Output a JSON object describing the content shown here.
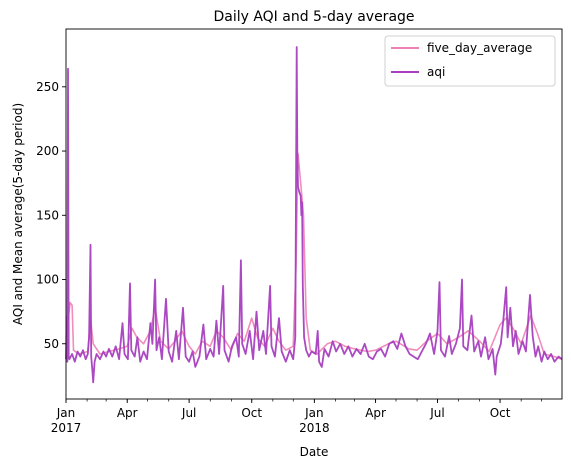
{
  "chart_data": {
    "type": "line",
    "title": "Daily AQI and 5-day average",
    "xlabel": "Date",
    "ylabel": "AQI and Mean average(5-day period)",
    "legend_position": "top-right",
    "grid": false,
    "xlim": [
      "2017-01-01",
      "2018-12-31"
    ],
    "ylim": [
      7,
      295
    ],
    "x_ticks": [
      {
        "date": "2017-01-01",
        "label": "Jan",
        "label2": "2017"
      },
      {
        "date": "2017-04-01",
        "label": "Apr",
        "label2": ""
      },
      {
        "date": "2017-07-01",
        "label": "Jul",
        "label2": ""
      },
      {
        "date": "2017-10-01",
        "label": "Oct",
        "label2": ""
      },
      {
        "date": "2018-01-01",
        "label": "Jan",
        "label2": "2018"
      },
      {
        "date": "2018-04-01",
        "label": "Apr",
        "label2": ""
      },
      {
        "date": "2018-07-01",
        "label": "Jul",
        "label2": ""
      },
      {
        "date": "2018-10-01",
        "label": "Oct",
        "label2": ""
      }
    ],
    "y_ticks": [
      50,
      100,
      150,
      200,
      250
    ],
    "series": [
      {
        "name": "five_day_average",
        "color": "#f07fb4",
        "points": [
          [
            "2017-01-01",
            55
          ],
          [
            "2017-01-04",
            68
          ],
          [
            "2017-01-07",
            82
          ],
          [
            "2017-01-10",
            80
          ],
          [
            "2017-01-12",
            45
          ],
          [
            "2017-01-20",
            42
          ],
          [
            "2017-02-02",
            44
          ],
          [
            "2017-02-06",
            70
          ],
          [
            "2017-02-10",
            50
          ],
          [
            "2017-02-20",
            42
          ],
          [
            "2017-03-05",
            44
          ],
          [
            "2017-03-20",
            46
          ],
          [
            "2017-04-01",
            48
          ],
          [
            "2017-04-08",
            62
          ],
          [
            "2017-04-15",
            55
          ],
          [
            "2017-04-25",
            50
          ],
          [
            "2017-05-05",
            60
          ],
          [
            "2017-05-12",
            78
          ],
          [
            "2017-05-20",
            52
          ],
          [
            "2017-06-01",
            46
          ],
          [
            "2017-06-10",
            52
          ],
          [
            "2017-06-20",
            60
          ],
          [
            "2017-07-01",
            48
          ],
          [
            "2017-07-10",
            42
          ],
          [
            "2017-07-20",
            52
          ],
          [
            "2017-08-01",
            48
          ],
          [
            "2017-08-10",
            60
          ],
          [
            "2017-08-20",
            55
          ],
          [
            "2017-09-01",
            45
          ],
          [
            "2017-09-10",
            58
          ],
          [
            "2017-09-20",
            52
          ],
          [
            "2017-10-01",
            70
          ],
          [
            "2017-10-10",
            54
          ],
          [
            "2017-10-20",
            48
          ],
          [
            "2017-11-01",
            62
          ],
          [
            "2017-11-10",
            52
          ],
          [
            "2017-11-20",
            45
          ],
          [
            "2017-12-01",
            48
          ],
          [
            "2017-12-05",
            110
          ],
          [
            "2017-12-08",
            198
          ],
          [
            "2017-12-12",
            175
          ],
          [
            "2017-12-16",
            150
          ],
          [
            "2017-12-20",
            70
          ],
          [
            "2017-12-26",
            45
          ],
          [
            "2018-01-05",
            42
          ],
          [
            "2018-01-20",
            50
          ],
          [
            "2018-02-01",
            52
          ],
          [
            "2018-02-15",
            48
          ],
          [
            "2018-03-01",
            46
          ],
          [
            "2018-03-20",
            44
          ],
          [
            "2018-04-01",
            45
          ],
          [
            "2018-04-20",
            50
          ],
          [
            "2018-05-01",
            52
          ],
          [
            "2018-05-20",
            46
          ],
          [
            "2018-06-01",
            45
          ],
          [
            "2018-06-15",
            52
          ],
          [
            "2018-07-01",
            58
          ],
          [
            "2018-07-15",
            50
          ],
          [
            "2018-08-01",
            55
          ],
          [
            "2018-08-15",
            60
          ],
          [
            "2018-09-01",
            52
          ],
          [
            "2018-09-15",
            44
          ],
          [
            "2018-10-01",
            65
          ],
          [
            "2018-10-10",
            70
          ],
          [
            "2018-10-20",
            62
          ],
          [
            "2018-11-01",
            50
          ],
          [
            "2018-11-15",
            72
          ],
          [
            "2018-11-25",
            58
          ],
          [
            "2018-12-05",
            42
          ],
          [
            "2018-12-20",
            40
          ],
          [
            "2018-12-31",
            38
          ]
        ]
      },
      {
        "name": "aqi",
        "color": "#a73fc0",
        "points": [
          [
            "2017-01-01",
            38
          ],
          [
            "2017-01-02",
            71
          ],
          [
            "2017-01-03",
            36
          ],
          [
            "2017-01-04",
            264
          ],
          [
            "2017-01-05",
            40
          ],
          [
            "2017-01-06",
            38
          ],
          [
            "2017-01-10",
            42
          ],
          [
            "2017-01-14",
            36
          ],
          [
            "2017-01-18",
            44
          ],
          [
            "2017-01-22",
            40
          ],
          [
            "2017-01-26",
            45
          ],
          [
            "2017-01-30",
            38
          ],
          [
            "2017-02-02",
            42
          ],
          [
            "2017-02-04",
            55
          ],
          [
            "2017-02-06",
            127
          ],
          [
            "2017-02-07",
            40
          ],
          [
            "2017-02-09",
            28
          ],
          [
            "2017-02-10",
            20
          ],
          [
            "2017-02-12",
            36
          ],
          [
            "2017-02-15",
            42
          ],
          [
            "2017-02-20",
            38
          ],
          [
            "2017-02-25",
            44
          ],
          [
            "2017-03-01",
            40
          ],
          [
            "2017-03-05",
            46
          ],
          [
            "2017-03-10",
            40
          ],
          [
            "2017-03-15",
            48
          ],
          [
            "2017-03-20",
            38
          ],
          [
            "2017-03-25",
            66
          ],
          [
            "2017-03-28",
            42
          ],
          [
            "2017-04-02",
            38
          ],
          [
            "2017-04-05",
            97
          ],
          [
            "2017-04-07",
            45
          ],
          [
            "2017-04-12",
            40
          ],
          [
            "2017-04-16",
            55
          ],
          [
            "2017-04-20",
            36
          ],
          [
            "2017-04-25",
            44
          ],
          [
            "2017-04-30",
            38
          ],
          [
            "2017-05-05",
            66
          ],
          [
            "2017-05-08",
            50
          ],
          [
            "2017-05-12",
            100
          ],
          [
            "2017-05-14",
            45
          ],
          [
            "2017-05-18",
            55
          ],
          [
            "2017-05-22",
            38
          ],
          [
            "2017-05-28",
            85
          ],
          [
            "2017-06-01",
            44
          ],
          [
            "2017-06-06",
            36
          ],
          [
            "2017-06-12",
            60
          ],
          [
            "2017-06-16",
            38
          ],
          [
            "2017-06-22",
            78
          ],
          [
            "2017-06-26",
            40
          ],
          [
            "2017-07-01",
            36
          ],
          [
            "2017-07-06",
            44
          ],
          [
            "2017-07-10",
            32
          ],
          [
            "2017-07-16",
            40
          ],
          [
            "2017-07-22",
            65
          ],
          [
            "2017-07-26",
            38
          ],
          [
            "2017-08-01",
            46
          ],
          [
            "2017-08-06",
            40
          ],
          [
            "2017-08-10",
            68
          ],
          [
            "2017-08-14",
            42
          ],
          [
            "2017-08-20",
            95
          ],
          [
            "2017-08-22",
            45
          ],
          [
            "2017-08-28",
            36
          ],
          [
            "2017-09-02",
            48
          ],
          [
            "2017-09-08",
            55
          ],
          [
            "2017-09-12",
            40
          ],
          [
            "2017-09-15",
            115
          ],
          [
            "2017-09-17",
            50
          ],
          [
            "2017-09-22",
            42
          ],
          [
            "2017-09-28",
            60
          ],
          [
            "2017-10-03",
            38
          ],
          [
            "2017-10-08",
            75
          ],
          [
            "2017-10-12",
            45
          ],
          [
            "2017-10-18",
            60
          ],
          [
            "2017-10-22",
            42
          ],
          [
            "2017-10-28",
            95
          ],
          [
            "2017-10-30",
            48
          ],
          [
            "2017-11-04",
            40
          ],
          [
            "2017-11-10",
            70
          ],
          [
            "2017-11-14",
            44
          ],
          [
            "2017-11-20",
            36
          ],
          [
            "2017-11-26",
            45
          ],
          [
            "2017-12-01",
            38
          ],
          [
            "2017-12-04",
            55
          ],
          [
            "2017-12-06",
            281
          ],
          [
            "2017-12-07",
            200
          ],
          [
            "2017-12-08",
            172
          ],
          [
            "2017-12-10",
            168
          ],
          [
            "2017-12-12",
            165
          ],
          [
            "2017-12-13",
            150
          ],
          [
            "2017-12-14",
            160
          ],
          [
            "2017-12-15",
            95
          ],
          [
            "2017-12-17",
            55
          ],
          [
            "2017-12-20",
            45
          ],
          [
            "2017-12-24",
            40
          ],
          [
            "2017-12-28",
            44
          ],
          [
            "2018-01-03",
            42
          ],
          [
            "2018-01-06",
            60
          ],
          [
            "2018-01-08",
            36
          ],
          [
            "2018-01-12",
            32
          ],
          [
            "2018-01-16",
            46
          ],
          [
            "2018-01-22",
            40
          ],
          [
            "2018-01-28",
            52
          ],
          [
            "2018-02-02",
            44
          ],
          [
            "2018-02-08",
            50
          ],
          [
            "2018-02-14",
            42
          ],
          [
            "2018-02-20",
            48
          ],
          [
            "2018-02-26",
            40
          ],
          [
            "2018-03-04",
            46
          ],
          [
            "2018-03-10",
            42
          ],
          [
            "2018-03-16",
            50
          ],
          [
            "2018-03-22",
            40
          ],
          [
            "2018-03-28",
            38
          ],
          [
            "2018-04-03",
            44
          ],
          [
            "2018-04-09",
            46
          ],
          [
            "2018-04-15",
            40
          ],
          [
            "2018-04-21",
            50
          ],
          [
            "2018-04-27",
            52
          ],
          [
            "2018-05-03",
            46
          ],
          [
            "2018-05-09",
            58
          ],
          [
            "2018-05-15",
            48
          ],
          [
            "2018-05-21",
            42
          ],
          [
            "2018-05-27",
            40
          ],
          [
            "2018-06-02",
            38
          ],
          [
            "2018-06-08",
            44
          ],
          [
            "2018-06-14",
            50
          ],
          [
            "2018-06-20",
            58
          ],
          [
            "2018-06-26",
            42
          ],
          [
            "2018-07-01",
            60
          ],
          [
            "2018-07-04",
            98
          ],
          [
            "2018-07-06",
            45
          ],
          [
            "2018-07-12",
            40
          ],
          [
            "2018-07-18",
            56
          ],
          [
            "2018-07-22",
            42
          ],
          [
            "2018-07-28",
            50
          ],
          [
            "2018-08-03",
            62
          ],
          [
            "2018-08-06",
            100
          ],
          [
            "2018-08-08",
            48
          ],
          [
            "2018-08-14",
            45
          ],
          [
            "2018-08-20",
            72
          ],
          [
            "2018-08-24",
            44
          ],
          [
            "2018-08-30",
            52
          ],
          [
            "2018-09-03",
            40
          ],
          [
            "2018-09-09",
            55
          ],
          [
            "2018-09-14",
            38
          ],
          [
            "2018-09-20",
            46
          ],
          [
            "2018-09-24",
            26
          ],
          [
            "2018-09-26",
            40
          ],
          [
            "2018-10-02",
            50
          ],
          [
            "2018-10-06",
            70
          ],
          [
            "2018-10-10",
            94
          ],
          [
            "2018-10-12",
            55
          ],
          [
            "2018-10-16",
            78
          ],
          [
            "2018-10-20",
            48
          ],
          [
            "2018-10-24",
            60
          ],
          [
            "2018-10-28",
            42
          ],
          [
            "2018-11-03",
            52
          ],
          [
            "2018-11-08",
            44
          ],
          [
            "2018-11-14",
            88
          ],
          [
            "2018-11-18",
            56
          ],
          [
            "2018-11-22",
            40
          ],
          [
            "2018-11-26",
            48
          ],
          [
            "2018-12-01",
            36
          ],
          [
            "2018-12-05",
            44
          ],
          [
            "2018-12-10",
            38
          ],
          [
            "2018-12-15",
            42
          ],
          [
            "2018-12-20",
            36
          ],
          [
            "2018-12-26",
            40
          ],
          [
            "2018-12-31",
            38
          ]
        ]
      }
    ]
  }
}
